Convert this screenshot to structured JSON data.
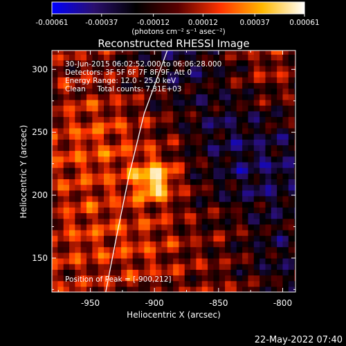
{
  "chart_data": {
    "type": "heatmap",
    "title": "Reconstructed RHESSI Image",
    "xlabel": "Heliocentric X (arcsec)",
    "ylabel": "Heliocentric Y (arcsec)",
    "xlim": [
      -980,
      -790
    ],
    "ylim": [
      123,
      315
    ],
    "x_ticks": [
      -950,
      -900,
      -850,
      -800
    ],
    "x_tick_labels": [
      "-950",
      "-900",
      "-850",
      "-800"
    ],
    "y_ticks": [
      150,
      200,
      250,
      300
    ],
    "y_tick_labels": [
      "150",
      "200",
      "250",
      "300"
    ],
    "colorbar": {
      "min": -0.00061,
      "max": 0.00061,
      "ticks": [
        -0.00061,
        -0.00037,
        -0.00012,
        0.00012,
        0.00037,
        0.00061
      ],
      "tick_labels": [
        "-0.00061",
        "-0.00037",
        "-0.00012",
        "0.00012",
        "0.00037",
        "0.00061"
      ],
      "units_label": "(photons cm⁻² s⁻¹ asec⁻²)",
      "colormap_stops": [
        "#0000ff",
        "#2a0f6e",
        "#000000",
        "#5a0000",
        "#ff3300",
        "#ffb800",
        "#ffffff"
      ]
    },
    "info_lines": [
      "30-Jun-2015 06:02:52.000 to 06:06:28.000",
      "Detectors: 3F 5F 6F 7F 8F 9F, Att 0",
      "Energy Range: 12.0 - 25.0 keV",
      "Clean     Total counts: 7.31E+03"
    ],
    "peak_label": "Position of Peak = [-900,212]",
    "peak_position": [
      -900,
      212
    ],
    "limb_curve": [
      [
        -938,
        123
      ],
      [
        -930,
        165
      ],
      [
        -920,
        215
      ],
      [
        -908,
        265
      ],
      [
        -890,
        315
      ]
    ],
    "footer_timestamp": "22-May-2022 07:40"
  }
}
